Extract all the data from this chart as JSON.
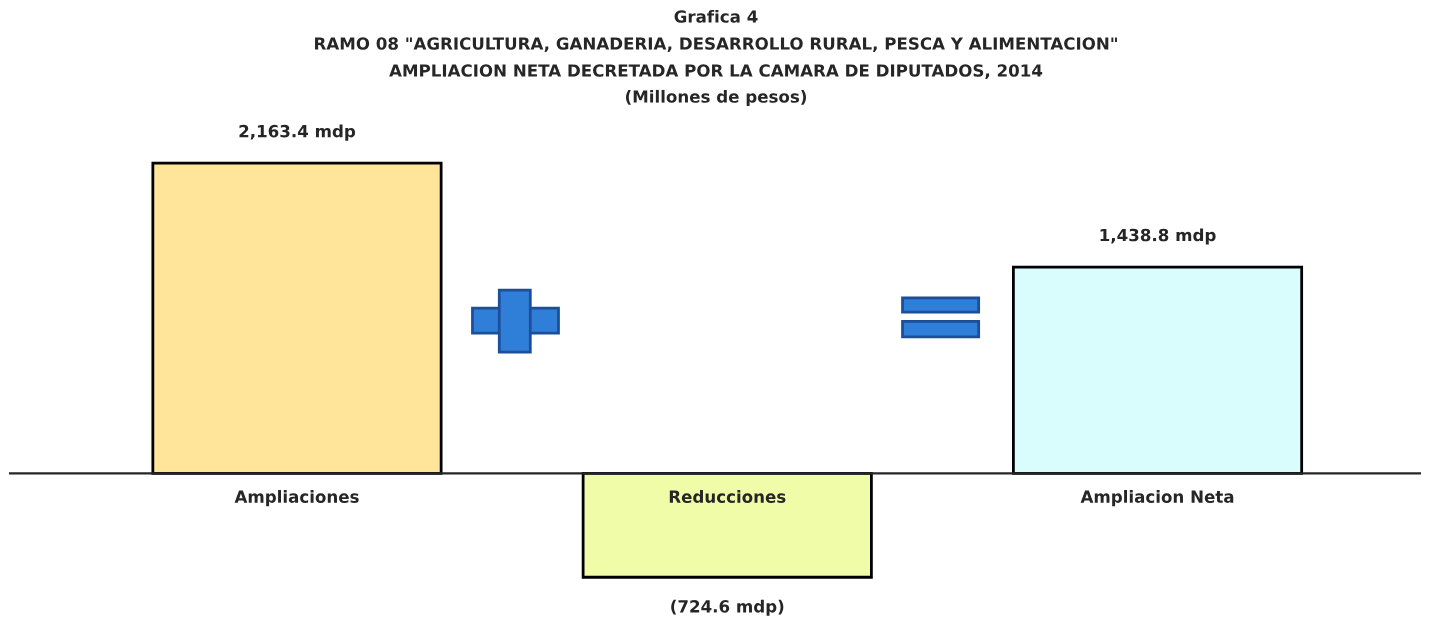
{
  "chart_data": {
    "type": "bar",
    "title": "Grafica 4",
    "subtitle": "RAMO 08 \"AGRICULTURA, GANADERIA, DESARROLLO RURAL, PESCA Y ALIMENTACION\"",
    "annotations": [
      "AMPLIACION NETA DECRETADA POR LA CAMARA DE DIPUTADOS, 2014",
      "(Millones de pesos)"
    ],
    "categories": [
      "Ampliaciones",
      "Reducciones",
      "Ampliacion Neta"
    ],
    "values": [
      2163.4,
      -724.6,
      1438.8
    ],
    "colors": [
      "#fee599",
      "#f0fca8",
      "#d9fcfd"
    ],
    "value_labels": [
      "2,163.4 mdp",
      "(724.6 mdp)",
      "1,438.8 mdp"
    ],
    "legend": false
  }
}
